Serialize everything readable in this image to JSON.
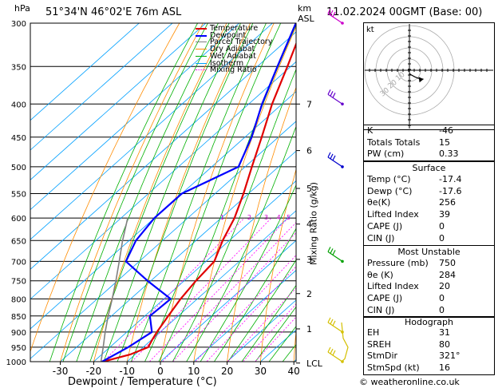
{
  "header": {
    "hpa_label": "hPa",
    "location": "51°34'N  46°02'E  76m  ASL",
    "km_label": "km",
    "asl_label": "ASL",
    "datetime": "11.02.2024  00GMT  (Base: 00)"
  },
  "footer": {
    "xlabel": "Dewpoint / Temperature (°C)",
    "copyright": "© weatheronline.co.uk"
  },
  "legend": [
    {
      "name": "Temperature",
      "color": "#e00000"
    },
    {
      "name": "Dewpoint",
      "color": "#0000ff"
    },
    {
      "name": "Parcel Trajectory",
      "color": "#808080"
    },
    {
      "name": "Dry Adiabat",
      "color": "#ff8c00"
    },
    {
      "name": "Wet Adiabat",
      "color": "#00b000"
    },
    {
      "name": "Isotherm",
      "color": "#00a0ff"
    },
    {
      "name": "Mixing Ratio",
      "color": "#ff00ff"
    }
  ],
  "mixing_ratio_label": "Mixing Ratio (g/kg)",
  "chart_data": {
    "type": "line",
    "title": "",
    "xlabel": "Dewpoint / Temperature (°C)",
    "ylabel": "hPa",
    "pressure_levels": [
      300,
      350,
      400,
      450,
      500,
      550,
      600,
      650,
      700,
      750,
      800,
      850,
      900,
      950,
      1000
    ],
    "x_ticks": [
      -30,
      -20,
      -10,
      0,
      10,
      20,
      30,
      40
    ],
    "xlim": [
      -40,
      40
    ],
    "ylim": [
      1000,
      300
    ],
    "km_ticks": [
      {
        "p": 400,
        "km": "7"
      },
      {
        "p": 472,
        "km": "6"
      },
      {
        "p": 540,
        "km": "5"
      },
      {
        "p": 613,
        "km": "4"
      },
      {
        "p": 695,
        "km": "3"
      },
      {
        "p": 785,
        "km": "2"
      },
      {
        "p": 890,
        "km": "1"
      },
      {
        "p": 1005,
        "km": "LCL"
      }
    ],
    "mixing_ratio_values": [
      "1",
      "2",
      "3",
      "4",
      "5",
      "8",
      "10",
      "15",
      "20",
      "25"
    ],
    "series": [
      {
        "name": "Temperature",
        "color": "#e00000",
        "points": [
          [
            1005,
            -17.4
          ],
          [
            1000,
            -17.2
          ],
          [
            975,
            -11.5
          ],
          [
            950,
            -8.5
          ],
          [
            925,
            -9.8
          ],
          [
            900,
            -11.0
          ],
          [
            850,
            -13.0
          ],
          [
            800,
            -15.0
          ],
          [
            750,
            -16.5
          ],
          [
            700,
            -17.5
          ],
          [
            650,
            -22.0
          ],
          [
            600,
            -26.0
          ],
          [
            550,
            -31.5
          ],
          [
            500,
            -38.0
          ],
          [
            450,
            -45.0
          ],
          [
            400,
            -53.0
          ],
          [
            350,
            -61.0
          ],
          [
            300,
            -70.5
          ]
        ]
      },
      {
        "name": "Dewpoint",
        "color": "#0000ff",
        "points": [
          [
            1005,
            -17.6
          ],
          [
            1000,
            -17.5
          ],
          [
            950,
            -14.5
          ],
          [
            900,
            -12.5
          ],
          [
            850,
            -18.5
          ],
          [
            800,
            -18.0
          ],
          [
            750,
            -31.0
          ],
          [
            700,
            -44.0
          ],
          [
            650,
            -48.0
          ],
          [
            600,
            -50.0
          ],
          [
            550,
            -50.0
          ],
          [
            500,
            -42.0
          ],
          [
            450,
            -48.0
          ],
          [
            400,
            -56.0
          ],
          [
            350,
            -64.0
          ],
          [
            300,
            -73.0
          ]
        ]
      },
      {
        "name": "Parcel Trajectory",
        "color": "#808080",
        "points": [
          [
            1005,
            -17.4
          ],
          [
            950,
            -22.0
          ],
          [
            900,
            -26.5
          ],
          [
            850,
            -31.0
          ],
          [
            800,
            -35.5
          ],
          [
            750,
            -40.5
          ],
          [
            700,
            -46.0
          ],
          [
            650,
            -52.0
          ],
          [
            600,
            -58.0
          ]
        ]
      }
    ]
  },
  "hodograph": {
    "label": "kt",
    "ring_labels": [
      "10",
      "20",
      "30"
    ],
    "points": [
      [
        0,
        0
      ],
      [
        2,
        -3
      ],
      [
        6,
        -7
      ],
      [
        10,
        -10
      ],
      [
        16,
        -12
      ]
    ]
  },
  "indices": {
    "rows": [
      {
        "k": "K",
        "v": "-46"
      },
      {
        "k": "Totals Totals",
        "v": "15"
      },
      {
        "k": "PW (cm)",
        "v": "0.33"
      }
    ],
    "surface_title": "Surface",
    "surface": [
      {
        "k": "Temp (°C)",
        "v": "-17.4"
      },
      {
        "k": "Dewp (°C)",
        "v": "-17.6"
      },
      {
        "k": "θe(K)",
        "v": "256"
      },
      {
        "k": "Lifted Index",
        "v": "39"
      },
      {
        "k": "CAPE (J)",
        "v": "0"
      },
      {
        "k": "CIN (J)",
        "v": "0"
      }
    ],
    "unstable_title": "Most Unstable",
    "unstable": [
      {
        "k": "Pressure (mb)",
        "v": "750"
      },
      {
        "k": "θe (K)",
        "v": "284"
      },
      {
        "k": "Lifted Index",
        "v": "20"
      },
      {
        "k": "CAPE (J)",
        "v": "0"
      },
      {
        "k": "CIN (J)",
        "v": "0"
      }
    ],
    "hodo_title": "Hodograph",
    "hodo": [
      {
        "k": "EH",
        "v": "31"
      },
      {
        "k": "SREH",
        "v": "80"
      },
      {
        "k": "StmDir",
        "v": "321°"
      },
      {
        "k": "StmSpd (kt)",
        "v": "16"
      }
    ]
  }
}
